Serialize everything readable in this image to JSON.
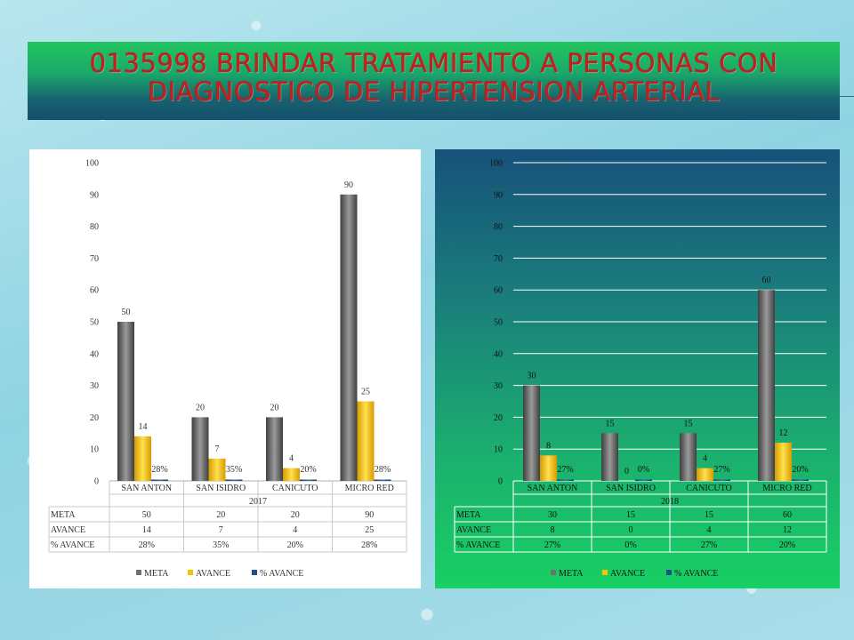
{
  "header": {
    "title": "0135998 BRINDAR TRATAMIENTO A PERSONAS CON\nDIAGNOSTICO DE HIPERTENSION ARTERIAL"
  },
  "colors": {
    "meta": "#707070",
    "avance": "#f5c400",
    "pct_avance": "#1f4e8c",
    "title": "#c41e1e"
  },
  "chart_data": [
    {
      "type": "bar",
      "year": "2017",
      "categories": [
        "SAN ANTON",
        "SAN ISIDRO",
        "CANICUTO",
        "MICRO RED"
      ],
      "series": [
        {
          "name": "META",
          "values": [
            50,
            20,
            20,
            90
          ],
          "labels": [
            "50",
            "20",
            "20",
            "90"
          ]
        },
        {
          "name": "AVANCE",
          "values": [
            14,
            7,
            4,
            25
          ],
          "labels": [
            "14",
            "7",
            "4",
            "25"
          ]
        },
        {
          "name": "% AVANCE",
          "values": [
            0.28,
            0.35,
            0.2,
            0.28
          ],
          "labels": [
            "28%",
            "35%",
            "20%",
            "28%"
          ]
        }
      ],
      "y_ticks": [
        "0",
        "10",
        "20",
        "30",
        "40",
        "50",
        "60",
        "70",
        "80",
        "90",
        "100"
      ],
      "ylim": [
        0,
        100
      ],
      "grid": false,
      "legend": "bottom",
      "data_table": true
    },
    {
      "type": "bar",
      "year": "2018",
      "categories": [
        "SAN ANTON",
        "SAN ISIDRO",
        "CANICUTO",
        "MICRO RED"
      ],
      "series": [
        {
          "name": "META",
          "values": [
            30,
            15,
            15,
            60
          ],
          "labels": [
            "30",
            "15",
            "15",
            "60"
          ]
        },
        {
          "name": "AVANCE",
          "values": [
            8,
            0,
            4,
            12
          ],
          "labels": [
            "8",
            "0",
            "4",
            "12"
          ]
        },
        {
          "name": "% AVANCE",
          "values": [
            0.27,
            0,
            0.27,
            0.2
          ],
          "labels": [
            "27%",
            "0%",
            "27%",
            "20%"
          ]
        }
      ],
      "y_ticks": [
        "0",
        "10",
        "20",
        "30",
        "40",
        "50",
        "60",
        "70",
        "80",
        "90",
        "100"
      ],
      "ylim": [
        0,
        100
      ],
      "grid": true,
      "legend": "bottom",
      "data_table": true
    }
  ]
}
